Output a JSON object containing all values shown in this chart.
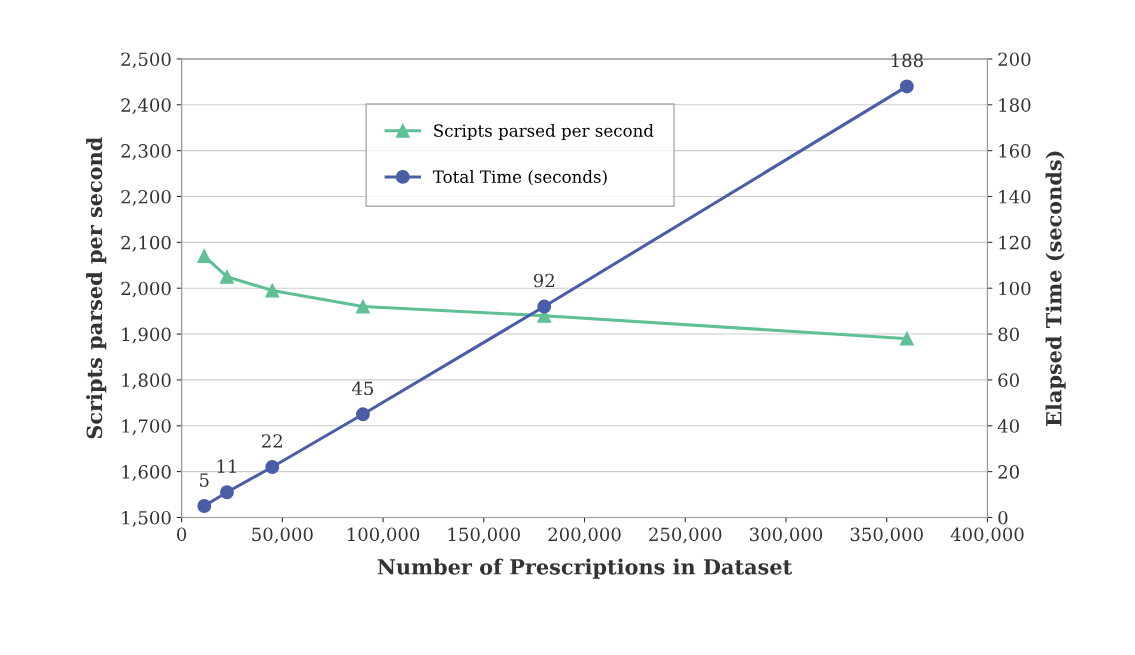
{
  "chart_data": {
    "type": "line",
    "xlabel": "Number of Prescriptions in Dataset",
    "ylabel": "Scripts parsed per second",
    "y2label": "Elapsed Time (seconds)",
    "x": [
      11250,
      22500,
      45000,
      90000,
      180000,
      360000
    ],
    "series": [
      {
        "name": "Scripts parsed per second",
        "color": "#5fbf95",
        "marker": "triangle",
        "values": [
          2070,
          2025,
          1995,
          1960,
          1940,
          1890
        ]
      },
      {
        "name": "Total Time (seconds)",
        "color": "#4a5ea8",
        "marker": "circle",
        "axis": "y2",
        "data_labels": true,
        "values": [
          5,
          11,
          22,
          45,
          92,
          188
        ]
      }
    ],
    "xlim": [
      0,
      400000
    ],
    "xticks": [
      {
        "value": 0,
        "label": "0"
      },
      {
        "value": 50000,
        "label": "50,000"
      },
      {
        "value": 100000,
        "label": "100,000"
      },
      {
        "value": 150000,
        "label": "150,000"
      },
      {
        "value": 200000,
        "label": "200,000"
      },
      {
        "value": 250000,
        "label": "250,000"
      },
      {
        "value": 300000,
        "label": "300,000"
      },
      {
        "value": 350000,
        "label": "350,000"
      },
      {
        "value": 400000,
        "label": "400,000"
      }
    ],
    "ylim": [
      1500,
      2500
    ],
    "yticks": [
      {
        "value": 1500,
        "label": "1,500"
      },
      {
        "value": 1600,
        "label": "1,600"
      },
      {
        "value": 1700,
        "label": "1,700"
      },
      {
        "value": 1800,
        "label": "1,800"
      },
      {
        "value": 1900,
        "label": "1,900"
      },
      {
        "value": 2000,
        "label": "2,000"
      },
      {
        "value": 2100,
        "label": "2,100"
      },
      {
        "value": 2200,
        "label": "2,200"
      },
      {
        "value": 2300,
        "label": "2,300"
      },
      {
        "value": 2400,
        "label": "2,400"
      },
      {
        "value": 2500,
        "label": "2,500"
      }
    ],
    "y2lim": [
      0,
      200
    ],
    "y2ticks": [
      0,
      20,
      40,
      60,
      80,
      100,
      120,
      140,
      160,
      180,
      200
    ],
    "grid": "y",
    "legend": "top",
    "line_style": "solid"
  }
}
